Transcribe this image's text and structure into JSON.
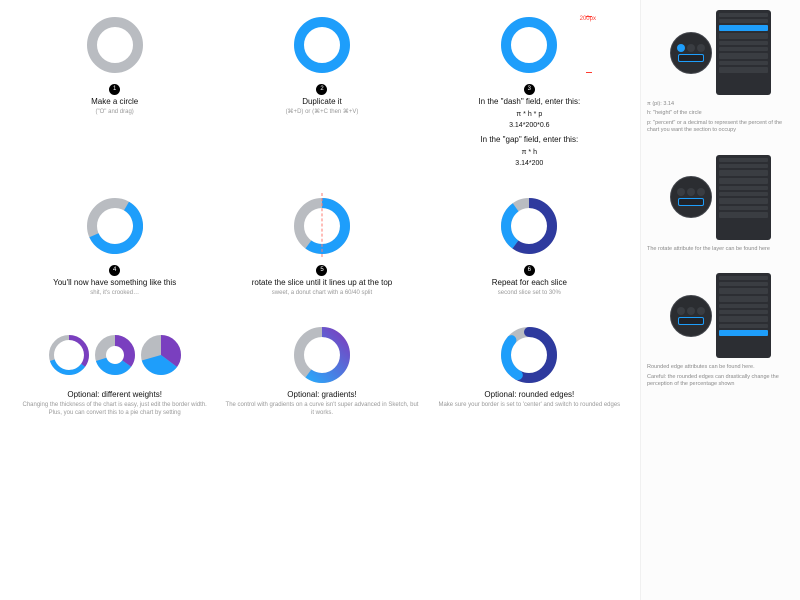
{
  "colors": {
    "blue": "#1e9efb",
    "grey": "#b9bcc1",
    "purple": "#7a3fbf",
    "navy": "#2e3a9e",
    "gradA": "#24b0ff",
    "gradB": "#7a3fbf",
    "red": "#ff3b30",
    "panel_bg": "#2c2e33"
  },
  "donut_defaults": {
    "size": 56,
    "stroke": 10,
    "radius": 23
  },
  "steps": [
    {
      "n": "1",
      "title": "Make a circle",
      "sub": "(\"O\" and drag)",
      "chart": {
        "kind": "single",
        "stroke_color": "#b9bcc1"
      }
    },
    {
      "n": "2",
      "title": "Duplicate it",
      "sub": "(⌘+D) or (⌘+C then ⌘+V)",
      "chart": {
        "kind": "single",
        "stroke_color": "#1e9efb"
      }
    },
    {
      "n": "3",
      "title": "In the \"dash\" field, enter this:",
      "formulas": [
        "π * h * p",
        "3.14*200*0.6"
      ],
      "title2": "In the \"gap\" field, enter this:",
      "formulas2": [
        "π * h",
        "3.14*200"
      ],
      "chart": {
        "kind": "single",
        "stroke_color": "#1e9efb",
        "dim_label": "200px"
      }
    },
    {
      "n": "4",
      "title": "You'll now have something like this",
      "sub": "shit, it's crooked…",
      "chart": {
        "kind": "donut",
        "bg": "#b9bcc1",
        "fg": "#1e9efb",
        "pct": 0.6,
        "rot": 30
      }
    },
    {
      "n": "5",
      "title": "rotate the slice until it lines up at the top",
      "sub": "sweet, a donut chart with a 60/40 split",
      "chart": {
        "kind": "donut",
        "bg": "#b9bcc1",
        "fg": "#1e9efb",
        "pct": 0.6,
        "rot": 0,
        "guide": true
      }
    },
    {
      "n": "6",
      "title": "Repeat for each slice",
      "sub": "second slice set to 30%",
      "chart": {
        "kind": "donut3",
        "c1": "#2e3a9e",
        "p1": 0.6,
        "c2": "#1e9efb",
        "p2": 0.3,
        "c3": "#b9bcc1"
      }
    },
    {
      "n": "",
      "title": "Optional: different weights!",
      "sub": "Changing the thickness of the chart is easy, just edit the border width.",
      "sub2": "Plus, you can convert this to a pie chart by setting",
      "chart": {
        "kind": "triple",
        "a": {
          "size": 40,
          "stroke": 5,
          "bg": "#b9bcc1",
          "fg": "#7a3fbf",
          "fg2": "#1e9efb",
          "p1": 0.35,
          "p2": 0.35
        },
        "b": {
          "size": 40,
          "stroke": 11,
          "bg": "#b9bcc1",
          "fg": "#7a3fbf",
          "fg2": "#1e9efb",
          "p1": 0.35,
          "p2": 0.35
        },
        "c": {
          "size": 40,
          "stroke": 20,
          "bg": "#b9bcc1",
          "fg": "#7a3fbf",
          "fg2": "#1e9efb",
          "p1": 0.35,
          "p2": 0.35
        }
      }
    },
    {
      "n": "",
      "title": "Optional: gradients!",
      "sub": "The control with gradients on a curve isn't super advanced in Sketch, but it works.",
      "chart": {
        "kind": "gradient",
        "bg": "#b9bcc1",
        "from": "#24b0ff",
        "to": "#7a3fbf",
        "pct": 0.6
      }
    },
    {
      "n": "",
      "title": "Optional: rounded edges!",
      "sub": "Make sure your border is set to 'center' and switch to rounded edges",
      "chart": {
        "kind": "donut3r",
        "c1": "#2e3a9e",
        "p1": 0.58,
        "c2": "#1e9efb",
        "p2": 0.28,
        "c3": "#b9bcc1"
      }
    }
  ],
  "side": [
    {
      "lines": [
        "π (pi): 3.14",
        "h: \"height\" of the circle",
        "p: \"percent\" or a decimal to represent the percent of the chart you want the section to occupy"
      ]
    },
    {
      "lines": [
        "The rotate attribute for the layer can be found here"
      ]
    },
    {
      "lines": [
        "Rounded edge attributes can be found here.",
        "Careful: the rounded edges can drastically change the perception of the percentage shown"
      ]
    }
  ]
}
